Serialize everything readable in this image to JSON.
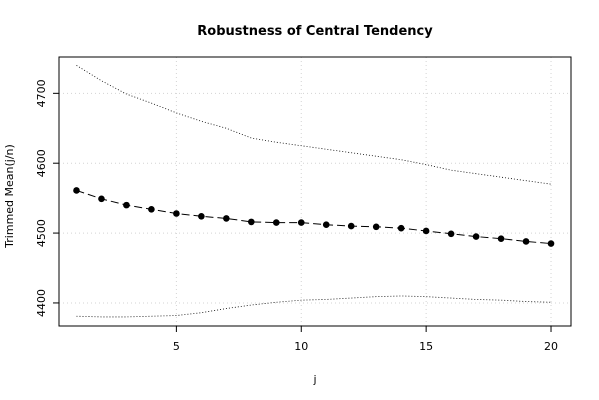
{
  "chart_data": {
    "type": "line",
    "title": "Robustness of Central Tendency",
    "xlabel": "j",
    "ylabel": "Trimmed Mean(j/n)",
    "xlim": [
      0.3,
      20.8
    ],
    "ylim": [
      4367,
      4752
    ],
    "x_ticks": [
      5,
      10,
      15,
      20
    ],
    "y_ticks": [
      4400,
      4500,
      4600,
      4700
    ],
    "grid": true,
    "x": [
      1,
      2,
      3,
      4,
      5,
      6,
      7,
      8,
      9,
      10,
      11,
      12,
      13,
      14,
      15,
      16,
      17,
      18,
      19,
      20
    ],
    "series": [
      {
        "role": "estimate",
        "values": [
          4561,
          4549,
          4540,
          4534,
          4528,
          4524,
          4521,
          4516,
          4515,
          4515,
          4512,
          4510,
          4509,
          4507,
          4503,
          4499,
          4495,
          4492,
          4488,
          4485
        ],
        "line_style": "dashed",
        "marker": "filled-circle",
        "color": "#000000"
      },
      {
        "role": "upper-band",
        "values": [
          4740,
          4718,
          4699,
          4686,
          4672,
          4660,
          4650,
          4636,
          4630,
          4625,
          4620,
          4615,
          4610,
          4605,
          4598,
          4590,
          4585,
          4580,
          4575,
          4570
        ],
        "line_style": "dotted",
        "marker": "none",
        "color": "#000000"
      },
      {
        "role": "lower-band",
        "values": [
          4381,
          4380,
          4380,
          4381,
          4382,
          4386,
          4392,
          4397,
          4401,
          4404,
          4405,
          4407,
          4409,
          4410,
          4409,
          4407,
          4405,
          4404,
          4402,
          4401
        ],
        "line_style": "dotted",
        "marker": "none",
        "color": "#000000"
      }
    ]
  }
}
